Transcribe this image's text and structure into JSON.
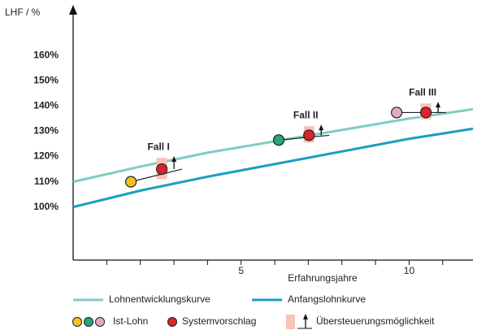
{
  "chart_data": {
    "type": "line",
    "y_label": "LHF / %",
    "x_label": "Erfahrungsjahre",
    "xlim": [
      0,
      11.9
    ],
    "ylim": [
      79,
      180
    ],
    "xticks": [
      5,
      10
    ],
    "xminor_ticks": [
      1,
      2,
      3,
      4,
      5,
      6,
      7,
      8,
      9,
      10,
      11
    ],
    "yticks": [
      {
        "value": 100,
        "label": "100%"
      },
      {
        "value": 110,
        "label": "110%"
      },
      {
        "value": 120,
        "label": "120%"
      },
      {
        "value": 130,
        "label": "130%"
      },
      {
        "value": 140,
        "label": "140%"
      },
      {
        "value": 150,
        "label": "150%"
      },
      {
        "value": 160,
        "label": "160%"
      }
    ],
    "series": [
      {
        "name": "Lohnentwicklungskurve",
        "color": "#7ecdc4",
        "x": [
          0,
          2,
          4,
          6,
          8,
          10,
          11.9
        ],
        "values": [
          110,
          116,
          121.5,
          126,
          130.5,
          135,
          138.7
        ]
      },
      {
        "name": "Anfangslohnkurve",
        "color": "#1a9fc0",
        "x": [
          0,
          2,
          4,
          6,
          8,
          10,
          11.9
        ],
        "values": [
          100,
          106.5,
          112,
          117,
          122,
          127,
          131
        ]
      }
    ],
    "cases": [
      {
        "label": "Fall I",
        "ist_color": "#f4c21b",
        "ist_x": 1.72,
        "ist_y": 110,
        "sys_x": 2.64,
        "sys_y": 115,
        "band_low": 111,
        "band_high": 119.5
      },
      {
        "label": "Fall II",
        "ist_color": "#2aa37a",
        "ist_x": 6.12,
        "ist_y": 126.5,
        "sys_x": 7.02,
        "sys_y": 128.4,
        "band_low": 125.5,
        "band_high": 132
      },
      {
        "label": "Fall III",
        "ist_color": "#e7a6c8",
        "ist_x": 9.63,
        "ist_y": 137.4,
        "sys_x": 10.5,
        "sys_y": 137.4,
        "band_low": 134.7,
        "band_high": 141
      }
    ],
    "sys_color": "#d9252b",
    "band_color": "#f8c4b4",
    "marker_legend": {
      "ist": "Ist-Lohn",
      "sys": "Systemvorschlag",
      "band": "Übersteuerungsmöglichkeit"
    }
  }
}
